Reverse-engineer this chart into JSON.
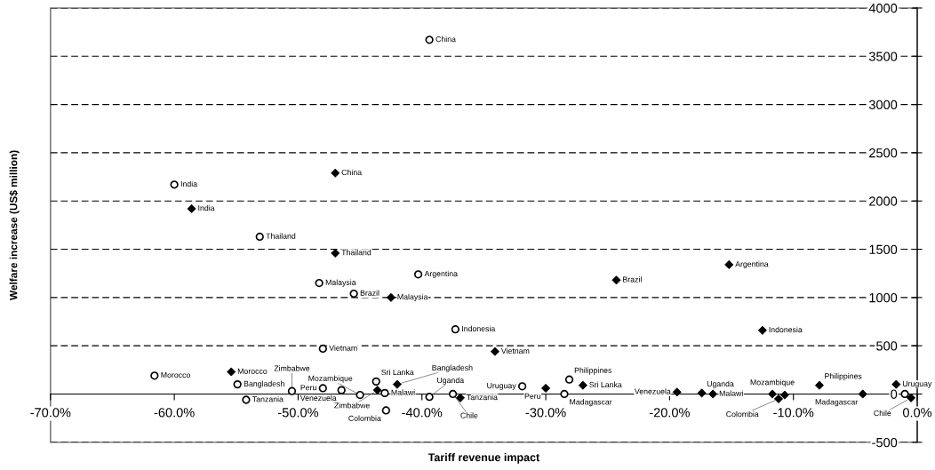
{
  "chart_data": {
    "type": "scatter",
    "xlabel": "Tariff revenue impact",
    "ylabel": "Welfare increase (US$ million)",
    "xlim": [
      -70,
      0
    ],
    "xticks": [
      {
        "value": -70,
        "label": "-70.0%"
      },
      {
        "value": -60,
        "label": "-60.0%"
      },
      {
        "value": -50,
        "label": "-50.0%"
      },
      {
        "value": -40,
        "label": "-40.0%"
      },
      {
        "value": -30,
        "label": "-30.0%"
      },
      {
        "value": -20,
        "label": "-20.0%"
      },
      {
        "value": -10,
        "label": "-10.0%"
      },
      {
        "value": 0,
        "label": "0.0%"
      }
    ],
    "ylim": [
      -500,
      4000
    ],
    "yticks": [
      -500,
      0,
      500,
      1000,
      1500,
      2000,
      2500,
      3000,
      3500,
      4000
    ],
    "grid": "y",
    "series": [
      {
        "color": "#000000",
        "marker": "circle",
        "x": [
          -39.4,
          -60.0,
          -53.1,
          -40.3,
          -48.3,
          -45.5,
          -37.3,
          -48.0,
          -61.6,
          -54.9,
          -54.2,
          -50.5,
          -48.0,
          -46.5,
          -43.7,
          -45.0,
          -43.0,
          -42.9,
          -39.4,
          -37.5,
          -31.9,
          -28.1,
          -28.5,
          -1.0
        ],
        "values": [
          3670,
          2170,
          1630,
          1240,
          1150,
          1040,
          670,
          470,
          190,
          100,
          -60,
          30,
          60,
          40,
          130,
          -10,
          10,
          -170,
          -30,
          0,
          80,
          150,
          0,
          0
        ]
      },
      {
        "color": "#000000",
        "marker": "diamond",
        "x": [
          -47.0,
          -58.6,
          -47.0,
          -42.5,
          -24.3,
          -15.2,
          -12.5,
          -34.1,
          -55.4,
          -42.0,
          -43.6,
          -36.9,
          -30.0,
          -27.0,
          -19.4,
          -17.4,
          -16.5,
          -11.7,
          -11.2,
          -10.7,
          -7.9,
          -4.4,
          -1.7,
          -0.5
        ],
        "values": [
          2290,
          1920,
          1460,
          1000,
          1180,
          1340,
          660,
          440,
          230,
          100,
          40,
          -40,
          60,
          90,
          20,
          10,
          0,
          0,
          -50,
          -10,
          90,
          0,
          100,
          -40
        ]
      }
    ],
    "annotations": [
      {
        "text": "China",
        "x": -39.4,
        "y": 3670
      },
      {
        "text": "India",
        "x": -60.0,
        "y": 2170
      },
      {
        "text": "Thailand",
        "x": -53.1,
        "y": 1630
      },
      {
        "text": "Argentina",
        "x": -40.3,
        "y": 1240
      },
      {
        "text": "Malaysia",
        "x": -48.3,
        "y": 1150
      },
      {
        "text": "Brazil",
        "x": -45.5,
        "y": 1040
      },
      {
        "text": "Indonesia",
        "x": -37.3,
        "y": 670
      },
      {
        "text": "Vietnam",
        "x": -48.0,
        "y": 470
      },
      {
        "text": "Morocco",
        "x": -61.6,
        "y": 190
      },
      {
        "text": "Bangladesh",
        "x": -54.9,
        "y": 100
      },
      {
        "text": "Tanzania",
        "x": -54.2,
        "y": -60
      },
      {
        "text": "Zimbabwe",
        "x": -50.5,
        "y": 30
      },
      {
        "text": "Peru",
        "x": -48.0,
        "y": 60
      },
      {
        "text": "Venezuela",
        "x": -46.5,
        "y": 40
      },
      {
        "text": "Sri Lanka",
        "x": -43.7,
        "y": 130
      },
      {
        "text": "Mozambique",
        "x": -45.0,
        "y": -10
      },
      {
        "text": "Malawi",
        "x": -43.0,
        "y": 10
      },
      {
        "text": "Colombia",
        "x": -42.9,
        "y": -170
      },
      {
        "text": "Uganda",
        "x": -39.4,
        "y": -30
      },
      {
        "text": "Chile",
        "x": -37.5,
        "y": 0
      },
      {
        "text": "Uruguay",
        "x": -31.9,
        "y": 80
      },
      {
        "text": "Philippines",
        "x": -28.1,
        "y": 150
      },
      {
        "text": "Madagascar",
        "x": -28.5,
        "y": 0
      },
      {
        "text": "China",
        "x": -47.0,
        "y": 2290
      },
      {
        "text": "India",
        "x": -58.6,
        "y": 1920
      },
      {
        "text": "Thailand",
        "x": -47.0,
        "y": 1460
      },
      {
        "text": "Malaysia",
        "x": -42.5,
        "y": 1000
      },
      {
        "text": "Brazil",
        "x": -24.3,
        "y": 1180
      },
      {
        "text": "Argentina",
        "x": -15.2,
        "y": 1340
      },
      {
        "text": "Indonesia",
        "x": -12.5,
        "y": 660
      },
      {
        "text": "Vietnam",
        "x": -34.1,
        "y": 440
      },
      {
        "text": "Morocco",
        "x": -55.4,
        "y": 230
      },
      {
        "text": "Bangladesh",
        "x": -42.0,
        "y": 100
      },
      {
        "text": "Zimbabwe",
        "x": -43.6,
        "y": 40
      },
      {
        "text": "Tanzania",
        "x": -36.9,
        "y": -40
      },
      {
        "text": "Peru",
        "x": -30.0,
        "y": 60
      },
      {
        "text": "Sri Lanka",
        "x": -27.0,
        "y": 90
      },
      {
        "text": "Venezuela",
        "x": -19.4,
        "y": 20
      },
      {
        "text": "Uganda",
        "x": -17.4,
        "y": 10
      },
      {
        "text": "Malawi",
        "x": -16.5,
        "y": 0
      },
      {
        "text": "Mozambique",
        "x": -11.7,
        "y": 0
      },
      {
        "text": "Colombia",
        "x": -11.2,
        "y": -50
      },
      {
        "text": "Philippines",
        "x": -7.9,
        "y": 90
      },
      {
        "text": "Madagascar",
        "x": -4.4,
        "y": 0
      },
      {
        "text": "Uruguay",
        "x": -1.7,
        "y": 100
      },
      {
        "text": "Chile",
        "x": -0.5,
        "y": -40
      }
    ]
  }
}
